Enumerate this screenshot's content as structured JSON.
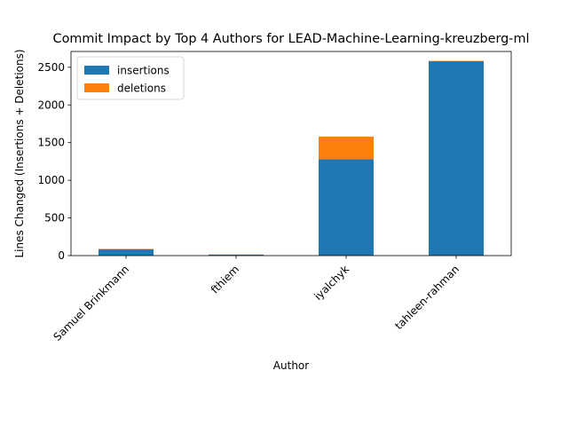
{
  "chart_data": {
    "type": "bar",
    "stacked": true,
    "title": "Commit Impact by Top 4 Authors for LEAD-Machine-Learning-kreuzberg-ml",
    "xlabel": "Author",
    "ylabel": "Lines Changed (Insertions + Deletions)",
    "categories": [
      "Samuel Brinkmann",
      "fthiem",
      "iyalchyk",
      "tahleen-rahman"
    ],
    "series": [
      {
        "name": "insertions",
        "color": "#1f77b4",
        "values": [
          85,
          12,
          1280,
          2580
        ]
      },
      {
        "name": "deletions",
        "color": "#ff7f0e",
        "values": [
          5,
          3,
          300,
          5
        ]
      }
    ],
    "ylim": [
      0,
      2710
    ],
    "yticks": [
      0,
      500,
      1000,
      1500,
      2000,
      2500
    ],
    "grid": false,
    "legend_position": "upper-left"
  }
}
